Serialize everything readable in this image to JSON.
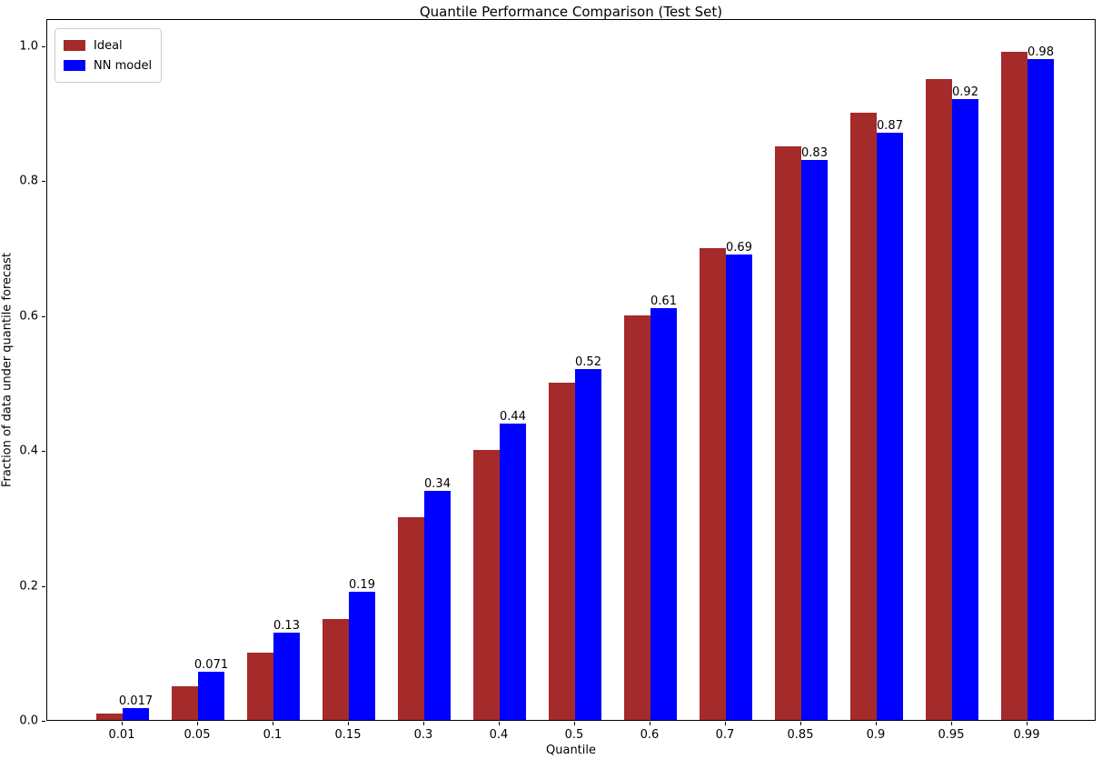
{
  "chart_data": {
    "type": "bar",
    "title": "Quantile Performance Comparison (Test Set)",
    "xlabel": "Quantile",
    "ylabel": "Fraction of data under quantile forecast",
    "categories": [
      "0.01",
      "0.05",
      "0.1",
      "0.15",
      "0.3",
      "0.4",
      "0.5",
      "0.6",
      "0.7",
      "0.85",
      "0.9",
      "0.95",
      "0.99"
    ],
    "series": [
      {
        "name": "Ideal",
        "color": "#A52A2A",
        "values": [
          0.01,
          0.05,
          0.1,
          0.15,
          0.3,
          0.4,
          0.5,
          0.6,
          0.7,
          0.85,
          0.9,
          0.95,
          0.99
        ]
      },
      {
        "name": "NN model",
        "color": "#0000FF",
        "values": [
          0.017,
          0.071,
          0.13,
          0.19,
          0.34,
          0.44,
          0.52,
          0.61,
          0.69,
          0.83,
          0.87,
          0.92,
          0.98
        ]
      }
    ],
    "bar_labels": {
      "series": "NN model",
      "values": [
        "0.017",
        "0.071",
        "0.13",
        "0.19",
        "0.34",
        "0.44",
        "0.52",
        "0.61",
        "0.69",
        "0.83",
        "0.87",
        "0.92",
        "0.98"
      ]
    },
    "yticks": [
      "0.0",
      "0.2",
      "0.4",
      "0.6",
      "0.8",
      "1.0"
    ],
    "ylim": [
      0,
      1.0404
    ],
    "grid": false,
    "legend_position": "upper left",
    "axis_color": "#000000",
    "background_color": "#ffffff"
  }
}
